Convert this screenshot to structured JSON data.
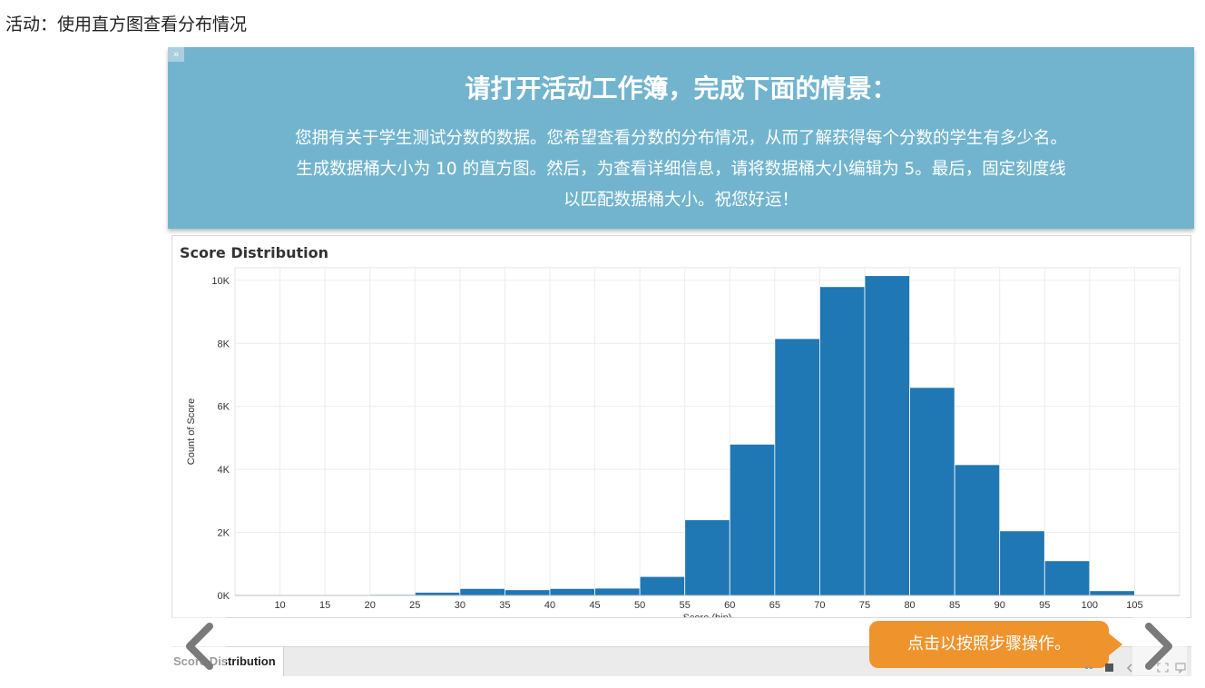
{
  "page": {
    "title": "活动：使用直方图查看分布情况"
  },
  "story_point": {
    "expand_label": "»",
    "heading": "请打开活动工作簿，完成下面的情景：",
    "body_lines": [
      "您拥有关于学生测试分数的数据。您希望查看分数的分布情况，从而了解获得每个分数的学生有多少名。",
      "生成数据桶大小为 10 的直方图。然后，为查看详细信息，请将数据桶大小编辑为 5。最后，固定刻度线",
      "以匹配数据桶大小。祝您好运！"
    ],
    "background_color": "#72b4ce"
  },
  "worksheet": {
    "sheet_tab_label": "Score Distribution",
    "prev_icon": "chevron-left-icon",
    "next_icon": "chevron-right-icon"
  },
  "callout": {
    "label": "点击以按照步骤操作。",
    "color": "#ef942d"
  },
  "chart_data": {
    "type": "bar",
    "title": "Score Distribution",
    "xlabel": "Score (bin)",
    "ylabel": "Count of Score",
    "bin_size": 5,
    "bins": [
      10,
      15,
      20,
      25,
      30,
      35,
      40,
      45,
      50,
      55,
      60,
      65,
      70,
      75,
      80,
      85,
      90,
      95,
      100
    ],
    "values": [
      10,
      20,
      30,
      100,
      220,
      180,
      220,
      230,
      600,
      2400,
      4800,
      8150,
      9800,
      10150,
      6600,
      4150,
      2050,
      1100,
      150
    ],
    "x_ticks": [
      "10",
      "15",
      "20",
      "25",
      "30",
      "35",
      "40",
      "45",
      "50",
      "55",
      "60",
      "65",
      "70",
      "75",
      "80",
      "85",
      "90",
      "95",
      "100",
      "105"
    ],
    "xlim": [
      5,
      110
    ],
    "y_ticks": [
      {
        "value": 0,
        "label": "0K"
      },
      {
        "value": 2000,
        "label": "2K"
      },
      {
        "value": 4000,
        "label": "4K"
      },
      {
        "value": 6000,
        "label": "6K"
      },
      {
        "value": 8000,
        "label": "8K"
      },
      {
        "value": 10000,
        "label": "10K"
      }
    ],
    "ylim": [
      0,
      10400
    ],
    "grid": true,
    "bar_color": "#1f77b4"
  }
}
